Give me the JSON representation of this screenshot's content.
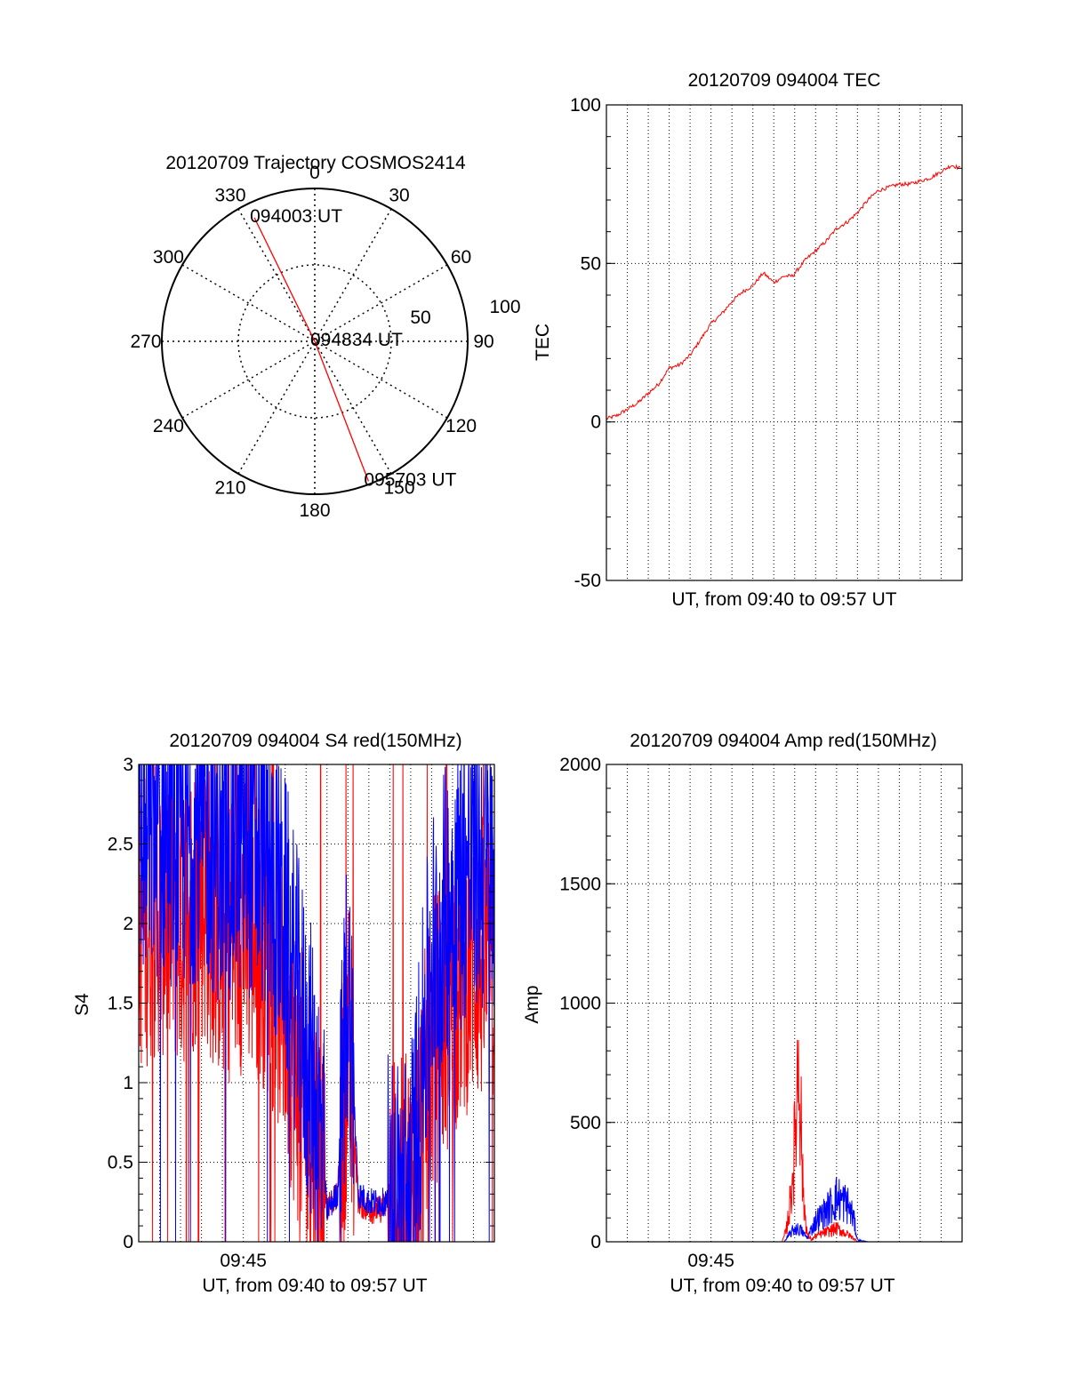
{
  "colors": {
    "red": "#ff0000",
    "blue": "#0000ff",
    "axis": "#000000",
    "grid": "#000000",
    "background": "#ffffff"
  },
  "chart_data": [
    {
      "type": "polar",
      "title": "20120709 Trajectory COSMOS2414",
      "azimuth_labels": [
        "0",
        "30",
        "60",
        "90",
        "120",
        "150",
        "180",
        "210",
        "240",
        "270",
        "300",
        "330"
      ],
      "radius_labels": [
        "50",
        "100"
      ],
      "grid": true,
      "trajectory": {
        "color": "red",
        "points": [
          {
            "azimuth": 334,
            "radius": 90,
            "label": "094003 UT"
          },
          {
            "azimuth": 0,
            "radius": 0,
            "label": "094834 UT"
          },
          {
            "azimuth": 159,
            "radius": 98,
            "label": "095703 UT"
          }
        ]
      }
    },
    {
      "type": "line",
      "title": "20120709 094004 TEC",
      "xlabel": "UT, from 09:40 to 09:57 UT",
      "ylabel": "TEC",
      "xlim": [
        "09:40",
        "09:57"
      ],
      "ylim": [
        -50,
        100
      ],
      "yticks": [
        "100",
        "50",
        "0",
        "-50"
      ],
      "grid": true,
      "series": [
        {
          "color": "red",
          "x_minutes": [
            0,
            0.5,
            1,
            1.5,
            2,
            2.5,
            3,
            3.5,
            4,
            4.5,
            5,
            5.5,
            6,
            6.5,
            7,
            7.5,
            8,
            8.5,
            8.9,
            9.5,
            10,
            10.5,
            11,
            11.5,
            12,
            12.5,
            13,
            13.5,
            14,
            14.5,
            15,
            15.5,
            16,
            16.5,
            16.9
          ],
          "values": [
            1,
            2,
            4,
            6,
            9,
            12,
            17,
            18,
            21,
            26,
            31,
            34,
            38,
            41,
            43,
            47,
            44,
            46,
            46,
            51,
            54,
            57,
            61,
            63,
            66,
            70,
            73,
            74,
            75,
            75,
            76,
            77,
            79,
            81,
            80
          ]
        }
      ]
    },
    {
      "type": "line",
      "title": "20120709 094004 S4 red(150MHz)",
      "xlabel": "UT, from 09:40 to 09:57 UT",
      "ylabel": "S4",
      "xlim": [
        "09:40",
        "09:57"
      ],
      "ylim": [
        0,
        3
      ],
      "xticks": [
        "09:45"
      ],
      "yticks": [
        "3",
        "2.5",
        "2",
        "1.5",
        "1",
        "0.5",
        "0"
      ],
      "grid": true,
      "series": [
        {
          "color": "blue",
          "x_minutes": [
            0,
            1,
            2,
            3,
            4,
            5,
            6,
            7,
            7.5,
            8,
            8.5,
            8.8,
            9,
            9.5,
            10,
            10.5,
            11,
            11.5,
            12,
            12.5,
            13,
            14,
            15,
            16,
            17
          ],
          "values": [
            2.5,
            2.6,
            2.5,
            2.6,
            2.4,
            2.5,
            2.4,
            2.0,
            1.6,
            1.2,
            0.9,
            0.5,
            0.2,
            0.3,
            1.7,
            0.3,
            0.25,
            0.25,
            0.25,
            0.25,
            0.3,
            1.8,
            2.2,
            2.4,
            2.3
          ]
        },
        {
          "color": "red",
          "x_minutes": [
            0,
            1,
            2,
            3,
            4,
            5,
            6,
            7,
            7.5,
            8,
            8.5,
            8.8,
            9,
            9.5,
            10,
            10.5,
            11,
            11.5,
            12,
            12.5,
            13,
            14,
            15,
            16,
            17
          ],
          "values": [
            2.0,
            2.1,
            2.0,
            2.2,
            1.9,
            2.0,
            1.9,
            1.5,
            1.1,
            0.8,
            0.6,
            0.4,
            0.2,
            0.3,
            1.3,
            0.25,
            0.2,
            0.2,
            0.25,
            0.2,
            0.3,
            1.2,
            1.6,
            1.8,
            1.7
          ]
        }
      ]
    },
    {
      "type": "line",
      "title": "20120709 094004 Amp red(150MHz)",
      "xlabel": "UT, from 09:40 to 09:57 UT",
      "ylabel": "Amp",
      "xlim": [
        "09:40",
        "09:57"
      ],
      "ylim": [
        0,
        2000
      ],
      "xticks": [
        "09:45"
      ],
      "yticks": [
        "2000",
        "1500",
        "1000",
        "500",
        "0"
      ],
      "grid": true,
      "series": [
        {
          "color": "blue",
          "x_minutes": [
            0,
            8.5,
            8.7,
            9.0,
            9.3,
            9.6,
            10.0,
            10.5,
            11.0,
            11.5,
            11.8,
            12.0,
            12.5,
            17
          ],
          "values": [
            0,
            0,
            30,
            70,
            60,
            20,
            110,
            160,
            230,
            200,
            130,
            10,
            0,
            0
          ]
        },
        {
          "color": "red",
          "x_minutes": [
            0,
            8.4,
            8.6,
            8.8,
            9.0,
            9.2,
            9.4,
            9.6,
            9.8,
            10.0,
            10.5,
            11.0,
            11.5,
            11.8,
            12.0,
            12.5,
            17
          ],
          "values": [
            0,
            0,
            60,
            220,
            500,
            1050,
            250,
            40,
            10,
            30,
            50,
            70,
            40,
            20,
            0,
            0,
            0
          ]
        }
      ]
    }
  ]
}
